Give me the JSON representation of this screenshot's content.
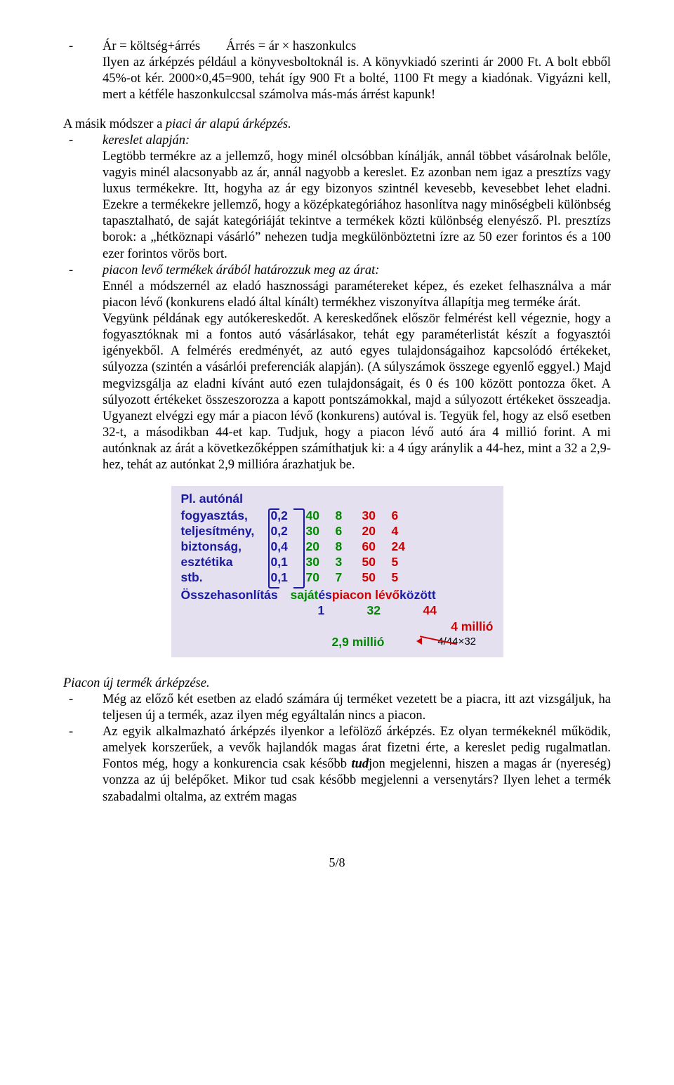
{
  "section1": {
    "bullet1_line1": "Ár = költség+árrés  Árrés = ár × haszonkulcs",
    "bullet1_line2": "Ilyen az árképzés például a könyvesboltoknál is. A könyvkiadó szerinti ár 2000 Ft. A bolt ebből 45%-ot kér. 2000×0,45=900, tehát így 900 Ft a bolté, 1100 Ft megy a kiadónak. Vigyázni kell, mert a kétféle haszonkulccsal számolva más-más árrést kapunk!"
  },
  "section2": {
    "intro_pre": "A másik módszer a ",
    "intro_it": "piaci ár alapú árképzés.",
    "b1_it": "kereslet alapján:",
    "b1_body": "Legtöbb termékre az a jellemző, hogy minél olcsóbban kínálják, annál többet vásárolnak belőle, vagyis minél alacsonyabb az ár, annál nagyobb a kereslet. Ez azonban nem igaz a presztízs vagy luxus termékekre. Itt, hogyha az ár egy bizonyos szintnél kevesebb, kevesebbet lehet eladni. Ezekre a termékekre jellemző, hogy a középkategóriához hasonlítva nagy minőségbeli különbség tapasztalható, de saját kategóriáját tekintve a termékek közti különbség elenyésző. Pl. presztízs borok: a „hétköznapi vásárló” nehezen tudja megkülönböztetni ízre az 50 ezer forintos és a 100 ezer forintos vörös bort.",
    "b2_it": "piacon levő termékek árából határozzuk meg az árat:",
    "b2_p1": "Ennél a módszernél az eladó hasznossági paramétereket képez, és ezeket felhasználva a már piacon lévő (konkurens eladó által kínált) termékhez viszonyítva állapítja meg terméke árát.",
    "b2_p2": "Vegyünk példának egy autókereskedőt. A kereskedőnek először felmérést kell végeznie, hogy a fogyasztóknak mi a fontos autó vásárlásakor, tehát egy paraméterlistát készít a fogyasztói igényekből. A felmérés eredményét, az autó egyes tulajdonságaihoz kapcsolódó értékeket, súlyozza (szintén a vásárlói preferenciák alapján). (A súlyszámok összege egyenlő eggyel.) Majd megvizsgálja az eladni kívánt autó ezen tulajdonságait, és 0 és 100 között pontozza őket. A súlyozott értékeket összeszorozza a kapott pontszámokkal, majd a súlyozott értékeket összeadja. Ugyanezt elvégzi egy már a piacon lévő (konkurens) autóval is. Tegyük fel, hogy az első esetben 32-t, a másodikban 44-et kap. Tudjuk, hogy a piacon lévő autó ára 4 millió forint. A mi autónknak az árát a következőképpen számíthatjuk ki: a 4 úgy aránylik a 44-hez, mint a 32 a 2,9-hez, tehát az autónkat 2,9 millióra árazhatjuk be."
  },
  "figure": {
    "title": "Pl. autónál",
    "rows": [
      {
        "label": "fogyasztás,",
        "w": "0,2",
        "g1": "40",
        "g2": "8",
        "r1": "30",
        "r2": "6"
      },
      {
        "label": "teljesítmény,",
        "w": "0,2",
        "g1": "30",
        "g2": "6",
        "r1": "20",
        "r2": "4"
      },
      {
        "label": "biztonság,",
        "w": "0,4",
        "g1": "20",
        "g2": "8",
        "r1": "60",
        "r2": "24"
      },
      {
        "label": "esztétika",
        "w": "0,1",
        "g1": "30",
        "g2": "3",
        "r1": "50",
        "r2": "5"
      },
      {
        "label": "stb.",
        "w": "0,1",
        "g1": "70",
        "g2": "7",
        "r1": "50",
        "r2": "5"
      }
    ],
    "sum_label": "Összehasonlítás",
    "sum_sajat": "saját",
    "sum_es": " és ",
    "sum_piacon": "piacon lévő",
    "sum_koz": " között",
    "one": "1",
    "n32": "32",
    "n44": "44",
    "million4": "4 millió",
    "million29": "2,9 millió",
    "frac": "4/44×32"
  },
  "section3": {
    "heading": "Piacon új termék árképzése.",
    "b1": "Még az előző két esetben az eladó számára új terméket vezetett be a piacra, itt azt vizsgáljuk, ha teljesen új a termék, azaz ilyen még egyáltalán nincs a piacon.",
    "b2_pre": "Az egyik alkalmazható árképzés ilyenkor a lefölöző árképzés. Ez olyan termékeknél működik, amelyek korszerűek, a vevők hajlandók magas árat fizetni érte, a kereslet pedig rugalmatlan. Fontos még, hogy a konkurencia csak később ",
    "b2_bi": "tud",
    "b2_post": "jon megjelenni, hiszen a magas ár (nyereség) vonzza az új belépőket. Mikor tud csak később megjelenni a versenytárs? Ilyen lehet a termék szabadalmi oltalma, az extrém magas"
  },
  "page": "5/8"
}
